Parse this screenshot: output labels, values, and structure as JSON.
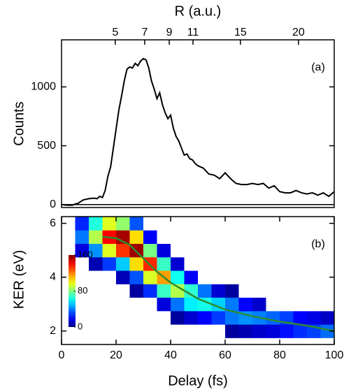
{
  "chart_data": [
    {
      "type": "line",
      "panel_label": "(a)",
      "y_label": "Counts",
      "x2_label": "R (a.u.)",
      "xlim": [
        0,
        100
      ],
      "ylim": [
        -25,
        1400
      ],
      "yticks": [
        0,
        500,
        1000
      ],
      "x2ticks": [
        {
          "value": 19.7,
          "label": "5"
        },
        {
          "value": 30.5,
          "label": "7"
        },
        {
          "value": 39.5,
          "label": "9"
        },
        {
          "value": 48.2,
          "label": "11"
        },
        {
          "value": 65.6,
          "label": "15"
        },
        {
          "value": 86.9,
          "label": "20"
        }
      ],
      "color": "#000000",
      "x": [
        0,
        2,
        4,
        5,
        6,
        8,
        10,
        12,
        13,
        14,
        15,
        16,
        17,
        18,
        19,
        20,
        21,
        22,
        23,
        24,
        25,
        26,
        27,
        28,
        29,
        30,
        31,
        32,
        33,
        34,
        35,
        36,
        37,
        38,
        39,
        40,
        41,
        42,
        43,
        44,
        45,
        46,
        47,
        48,
        49,
        50,
        52,
        54,
        56,
        58,
        60,
        62,
        64,
        66,
        68,
        70,
        72,
        74,
        76,
        78,
        80,
        82,
        84,
        86,
        88,
        90,
        92,
        94,
        96,
        98,
        100
      ],
      "values": [
        0,
        -5,
        -5,
        5,
        10,
        40,
        50,
        55,
        50,
        70,
        60,
        120,
        240,
        320,
        480,
        640,
        800,
        920,
        1050,
        1150,
        1170,
        1160,
        1200,
        1180,
        1220,
        1240,
        1230,
        1160,
        1050,
        980,
        900,
        950,
        850,
        780,
        730,
        760,
        650,
        580,
        540,
        480,
        420,
        430,
        390,
        380,
        350,
        330,
        310,
        260,
        250,
        220,
        270,
        220,
        180,
        170,
        170,
        180,
        170,
        180,
        140,
        160,
        110,
        100,
        100,
        120,
        100,
        90,
        100,
        80,
        100,
        70,
        110
      ]
    },
    {
      "type": "heatmap",
      "panel_label": "(b)",
      "x_label": "Delay (fs)",
      "y_label": "KER (eV)",
      "xlim": [
        0,
        100
      ],
      "ylim": [
        1.5,
        6.25
      ],
      "xticks": [
        0,
        20,
        40,
        60,
        80,
        100
      ],
      "yticks": [
        2,
        4,
        6
      ],
      "zlim": [
        0,
        160
      ],
      "zticks": [
        0,
        80,
        160
      ],
      "x_edges": [
        5,
        10,
        15,
        20,
        25,
        30,
        35,
        40,
        45,
        50,
        55,
        60,
        65,
        70,
        75,
        80,
        85,
        90,
        95,
        100
      ],
      "y_edges": [
        1.75,
        2.25,
        2.75,
        3.25,
        3.75,
        4.25,
        4.75,
        5.25,
        5.75,
        6.25
      ],
      "z": [
        [
          0,
          0,
          0,
          0,
          0,
          0,
          0,
          0,
          1,
          1,
          2,
          5,
          8,
          12,
          14,
          22,
          27,
          30,
          37
        ],
        [
          0,
          0,
          0,
          0,
          0,
          0,
          1,
          5,
          13,
          20,
          29,
          39,
          43,
          40,
          36,
          30,
          20,
          16,
          11
        ],
        [
          0,
          0,
          0,
          0,
          0,
          3,
          15,
          38,
          58,
          63,
          53,
          39,
          20,
          12,
          4,
          2,
          1,
          0,
          0
        ],
        [
          0,
          0,
          0,
          1,
          5,
          27,
          69,
          88,
          67,
          38,
          13,
          5,
          1,
          0,
          0,
          0,
          0,
          0,
          0
        ],
        [
          0,
          0,
          4,
          9,
          33,
          94,
          115,
          62,
          19,
          4,
          0,
          0,
          0,
          0,
          0,
          0,
          0,
          0,
          0
        ],
        [
          1,
          8,
          29,
          52,
          105,
          134,
          69,
          13,
          1,
          0,
          0,
          0,
          0,
          0,
          0,
          0,
          0,
          0,
          0
        ],
        [
          15,
          43,
          95,
          132,
          155,
          79,
          15,
          1,
          0,
          0,
          0,
          0,
          0,
          0,
          0,
          0,
          0,
          0,
          0
        ],
        [
          39,
          88,
          140,
          154,
          105,
          19,
          1,
          0,
          0,
          0,
          0,
          0,
          0,
          0,
          0,
          0,
          0,
          0,
          0
        ],
        [
          26,
          65,
          95,
          83,
          33,
          2,
          0,
          0,
          0,
          0,
          0,
          0,
          0,
          0,
          0,
          0,
          0,
          0,
          0
        ]
      ],
      "fit": {
        "color": "#2e8b2e",
        "x": [
          15,
          20,
          25,
          30,
          35,
          40,
          50,
          60,
          70,
          80,
          90,
          100
        ],
        "values": [
          5.5,
          5.45,
          5.2,
          4.7,
          4.2,
          3.8,
          3.2,
          2.8,
          2.55,
          2.35,
          2.2,
          2.0
        ]
      }
    }
  ]
}
